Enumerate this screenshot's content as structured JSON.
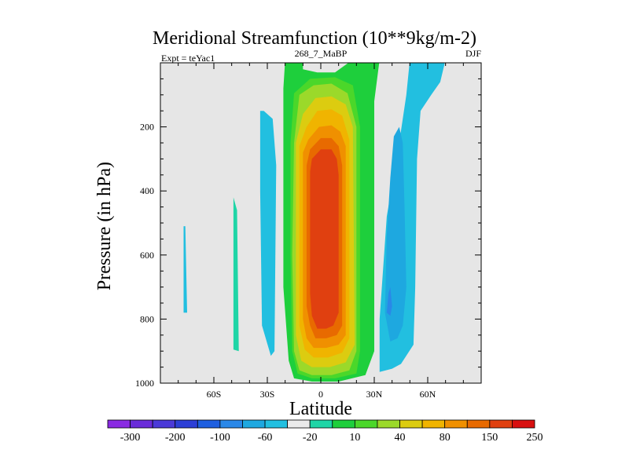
{
  "chart_data": {
    "type": "heatmap",
    "title": "Meridional Streamfunction (10**9kg/m-2)",
    "subtitle_left": "Expt = teYac1",
    "subtitle_center": "268_7_MaBP",
    "subtitle_right": "DJF",
    "xlabel": "Latitude",
    "ylabel": "Pressure (in hPa)",
    "xlim": [
      -90,
      90
    ],
    "ylim": [
      1000,
      0
    ],
    "x_ticks": [
      {
        "value": -60,
        "label": "60S"
      },
      {
        "value": -30,
        "label": "30S"
      },
      {
        "value": 0,
        "label": "0"
      },
      {
        "value": 30,
        "label": "30N"
      },
      {
        "value": 60,
        "label": "60N"
      }
    ],
    "y_ticks": [
      {
        "value": 200,
        "label": "200"
      },
      {
        "value": 400,
        "label": "400"
      },
      {
        "value": 600,
        "label": "600"
      },
      {
        "value": 800,
        "label": "800"
      },
      {
        "value": 1000,
        "label": "1000"
      }
    ],
    "colorbar": {
      "colors": [
        "#8a2be2",
        "#6a2cd9",
        "#4b3ad8",
        "#2c3fd6",
        "#1e5fe0",
        "#2a88e8",
        "#1ea8e0",
        "#22bfe0",
        "#eaeaea",
        "#1fd5a6",
        "#1ecf3c",
        "#4bd72a",
        "#9bd92a",
        "#dccc10",
        "#f0b400",
        "#f09000",
        "#e86a00",
        "#e04010",
        "#d81010"
      ],
      "labels": [
        {
          "after_index": 0,
          "label": "-300"
        },
        {
          "after_index": 2,
          "label": "-200"
        },
        {
          "after_index": 4,
          "label": "-100"
        },
        {
          "after_index": 6,
          "label": "-60"
        },
        {
          "after_index": 8,
          "label": "-20"
        },
        {
          "after_index": 10,
          "label": "10"
        },
        {
          "after_index": 12,
          "label": "40"
        },
        {
          "after_index": 14,
          "label": "80"
        },
        {
          "after_index": 16,
          "label": "150"
        },
        {
          "after_index": 18,
          "label": "250"
        }
      ]
    },
    "regions": [
      {
        "name": "region-neg-far-south",
        "color": "#22bfe0",
        "pts": [
          [
            -77,
            510
          ],
          [
            -76,
            510
          ],
          [
            -75,
            780
          ],
          [
            -77,
            780
          ]
        ]
      },
      {
        "name": "region-pos-south-1",
        "color": "#1fd5a6",
        "pts": [
          [
            -49,
            420
          ],
          [
            -47,
            460
          ],
          [
            -46,
            900
          ],
          [
            -49,
            895
          ]
        ]
      },
      {
        "name": "region-neg-south-2",
        "color": "#22bfe0",
        "pts": [
          [
            -34,
            150
          ],
          [
            -32,
            150
          ],
          [
            -27,
            175
          ],
          [
            -25,
            320
          ],
          [
            -26,
            900
          ],
          [
            -28,
            915
          ],
          [
            -33,
            820
          ],
          [
            -34,
            400
          ]
        ]
      },
      {
        "name": "region-pos-band-1",
        "color": "#1ecf3c",
        "pts": [
          [
            -20,
            -10
          ],
          [
            -10,
            -10
          ],
          [
            -10,
            20
          ],
          [
            -2,
            30
          ],
          [
            8,
            30
          ],
          [
            18,
            -10
          ],
          [
            33,
            -10
          ],
          [
            30,
            120
          ],
          [
            30,
            900
          ],
          [
            25,
            975
          ],
          [
            10,
            995
          ],
          [
            -5,
            995
          ],
          [
            -15,
            985
          ],
          [
            -18,
            930
          ],
          [
            -21,
            700
          ],
          [
            -21,
            80
          ]
        ]
      },
      {
        "name": "region-pos-band-2",
        "color": "#4bd72a",
        "pts": [
          [
            -15,
            95
          ],
          [
            -6,
            50
          ],
          [
            8,
            45
          ],
          [
            18,
            70
          ],
          [
            22,
            200
          ],
          [
            22,
            900
          ],
          [
            20,
            970
          ],
          [
            8,
            985
          ],
          [
            -5,
            985
          ],
          [
            -13,
            970
          ],
          [
            -16,
            900
          ],
          [
            -17,
            600
          ],
          [
            -17,
            250
          ]
        ]
      },
      {
        "name": "region-pos-band-3",
        "color": "#9bd92a",
        "pts": [
          [
            -12,
            100
          ],
          [
            -4,
            70
          ],
          [
            6,
            65
          ],
          [
            15,
            95
          ],
          [
            20,
            200
          ],
          [
            20,
            900
          ],
          [
            16,
            960
          ],
          [
            6,
            975
          ],
          [
            -5,
            975
          ],
          [
            -12,
            960
          ],
          [
            -15,
            900
          ],
          [
            -16,
            600
          ],
          [
            -15,
            250
          ]
        ]
      },
      {
        "name": "region-pos-band-4",
        "color": "#dccc10",
        "pts": [
          [
            -10,
            160
          ],
          [
            -3,
            110
          ],
          [
            6,
            105
          ],
          [
            14,
            130
          ],
          [
            18,
            200
          ],
          [
            19,
            880
          ],
          [
            14,
            935
          ],
          [
            5,
            950
          ],
          [
            -5,
            950
          ],
          [
            -11,
            930
          ],
          [
            -14,
            850
          ],
          [
            -14,
            250
          ]
        ]
      },
      {
        "name": "region-pos-band-5",
        "color": "#f0b400",
        "pts": [
          [
            -8,
            200
          ],
          [
            -2,
            150
          ],
          [
            6,
            145
          ],
          [
            12,
            165
          ],
          [
            16,
            240
          ],
          [
            16,
            860
          ],
          [
            12,
            905
          ],
          [
            4,
            920
          ],
          [
            -4,
            920
          ],
          [
            -9,
            895
          ],
          [
            -12,
            820
          ],
          [
            -12,
            260
          ]
        ]
      },
      {
        "name": "region-pos-band-6",
        "color": "#f09000",
        "pts": [
          [
            -7,
            240
          ],
          [
            -1,
            200
          ],
          [
            6,
            195
          ],
          [
            11,
            215
          ],
          [
            14,
            260
          ],
          [
            14,
            850
          ],
          [
            10,
            880
          ],
          [
            3,
            890
          ],
          [
            -4,
            890
          ],
          [
            -8,
            860
          ],
          [
            -10,
            800
          ],
          [
            -10,
            280
          ]
        ]
      },
      {
        "name": "region-pos-band-7",
        "color": "#e86a00",
        "pts": [
          [
            -6,
            270
          ],
          [
            0,
            235
          ],
          [
            6,
            235
          ],
          [
            10,
            260
          ],
          [
            12,
            320
          ],
          [
            12,
            820
          ],
          [
            9,
            850
          ],
          [
            3,
            860
          ],
          [
            -3,
            860
          ],
          [
            -6,
            820
          ],
          [
            -8,
            760
          ],
          [
            -8,
            320
          ]
        ]
      },
      {
        "name": "region-pos-core",
        "color": "#e04010",
        "pts": [
          [
            -5,
            300
          ],
          [
            0,
            270
          ],
          [
            6,
            270
          ],
          [
            9,
            300
          ],
          [
            10,
            350
          ],
          [
            10,
            780
          ],
          [
            7,
            820
          ],
          [
            3,
            830
          ],
          [
            -2,
            830
          ],
          [
            -5,
            790
          ],
          [
            -6,
            720
          ],
          [
            -6,
            340
          ]
        ]
      },
      {
        "name": "region-neg-north-outer",
        "color": "#22bfe0",
        "pts": [
          [
            50,
            -10
          ],
          [
            64,
            -10
          ],
          [
            70,
            -10
          ],
          [
            67,
            60
          ],
          [
            62,
            100
          ],
          [
            56,
            150
          ],
          [
            54,
            300
          ],
          [
            53,
            700
          ],
          [
            52,
            880
          ],
          [
            45,
            940
          ],
          [
            40,
            955
          ],
          [
            33,
            965
          ],
          [
            33,
            800
          ],
          [
            37,
            480
          ],
          [
            44,
            250
          ],
          [
            48,
            100
          ]
        ]
      },
      {
        "name": "region-neg-north-inner",
        "color": "#1ea8e0",
        "pts": [
          [
            41,
            230
          ],
          [
            44,
            200
          ],
          [
            46,
            250
          ],
          [
            47,
            450
          ],
          [
            48,
            700
          ],
          [
            46,
            820
          ],
          [
            43,
            860
          ],
          [
            39,
            870
          ],
          [
            36,
            780
          ],
          [
            37,
            540
          ],
          [
            39,
            360
          ]
        ]
      },
      {
        "name": "region-neg-north-core",
        "color": "#2a88e8",
        "pts": [
          [
            38,
            720
          ],
          [
            39,
            700
          ],
          [
            40,
            760
          ],
          [
            39,
            790
          ],
          [
            37,
            780
          ]
        ]
      }
    ]
  }
}
